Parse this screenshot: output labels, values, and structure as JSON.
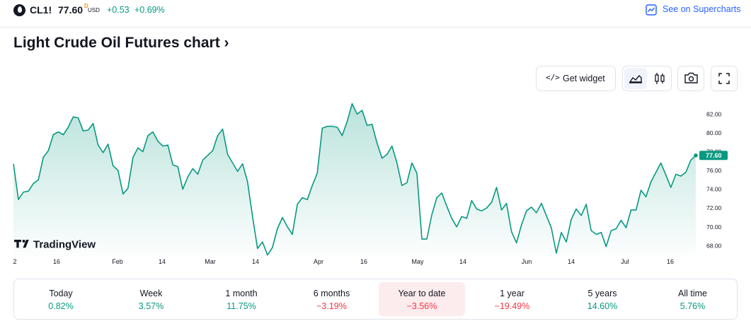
{
  "header": {
    "ticker": "CL1!",
    "price": "77.60",
    "price_flag": "D",
    "currency": "USD",
    "change": "+0.53",
    "change_pct": "+0.69%",
    "supercharts_link": "See on Supercharts",
    "icons": {
      "symbol": "oil-drop-icon",
      "supercharts": "chart-line-icon"
    }
  },
  "title": "Light Crude Oil Futures chart",
  "title_arrow": "›",
  "toolbar": {
    "widget_label": "Get widget",
    "icons": [
      "code-icon",
      "area-chart-icon",
      "candles-icon",
      "camera-icon",
      "fullscreen-icon"
    ]
  },
  "branding": {
    "logo_text": "TradingView"
  },
  "chart_data": {
    "type": "area",
    "line_color": "#089981",
    "y_ticks": [
      "82.00",
      "80.00",
      "78.00",
      "76.00",
      "74.00",
      "72.00",
      "70.00",
      "68.00"
    ],
    "ylim": [
      66.6,
      83.6
    ],
    "x_ticks": [
      "2",
      "16",
      "Feb",
      "14",
      "Mar",
      "14",
      "Apr",
      "16",
      "May",
      "14",
      "Jun",
      "14",
      "Jul",
      "16"
    ],
    "last_price_label": "77.60",
    "values": [
      76.7,
      72.9,
      73.7,
      73.8,
      74.6,
      75.0,
      77.4,
      78.1,
      79.8,
      80.1,
      79.8,
      80.6,
      81.7,
      81.6,
      80.2,
      80.3,
      81.0,
      78.7,
      77.9,
      78.8,
      76.5,
      76.0,
      73.5,
      74.1,
      77.4,
      78.4,
      78.0,
      79.7,
      80.1,
      79.1,
      78.6,
      78.7,
      76.6,
      76.4,
      74.0,
      75.3,
      76.2,
      75.6,
      77.1,
      77.6,
      78.1,
      79.7,
      80.4,
      77.7,
      76.8,
      75.9,
      76.7,
      74.8,
      71.1,
      67.7,
      68.4,
      67.0,
      67.8,
      69.8,
      71.0,
      70.0,
      69.2,
      72.4,
      73.1,
      72.9,
      74.4,
      75.7,
      80.5,
      80.7,
      80.7,
      80.6,
      79.7,
      81.2,
      83.1,
      82.0,
      82.4,
      80.8,
      80.9,
      78.9,
      77.3,
      77.7,
      78.6,
      76.8,
      74.4,
      74.7,
      76.8,
      75.7,
      68.7,
      68.7,
      71.3,
      73.1,
      73.6,
      72.2,
      70.9,
      70.0,
      71.1,
      70.9,
      72.8,
      71.9,
      71.7,
      72.0,
      72.6,
      74.2,
      71.8,
      72.5,
      69.5,
      68.3,
      70.2,
      71.7,
      72.1,
      71.5,
      72.5,
      71.2,
      69.9,
      67.2,
      69.4,
      68.4,
      70.8,
      71.9,
      71.2,
      72.4,
      69.6,
      69.2,
      69.4,
      67.9,
      69.6,
      69.8,
      70.7,
      69.9,
      71.8,
      71.8,
      73.9,
      73.2,
      74.8,
      75.8,
      76.8,
      75.5,
      74.2,
      75.6,
      75.4,
      75.8,
      77.1,
      77.6
    ]
  },
  "performance": [
    {
      "label": "Today",
      "value": "0.82%",
      "tone": "pos",
      "active": false
    },
    {
      "label": "Week",
      "value": "3.57%",
      "tone": "pos",
      "active": false
    },
    {
      "label": "1 month",
      "value": "11.75%",
      "tone": "pos",
      "active": false
    },
    {
      "label": "6 months",
      "value": "−3.19%",
      "tone": "neg",
      "active": false
    },
    {
      "label": "Year to date",
      "value": "−3.56%",
      "tone": "neg",
      "active": true
    },
    {
      "label": "1 year",
      "value": "−19.49%",
      "tone": "neg",
      "active": false
    },
    {
      "label": "5 years",
      "value": "14.60%",
      "tone": "pos",
      "active": false
    },
    {
      "label": "All time",
      "value": "5.76%",
      "tone": "pos",
      "active": false
    }
  ]
}
